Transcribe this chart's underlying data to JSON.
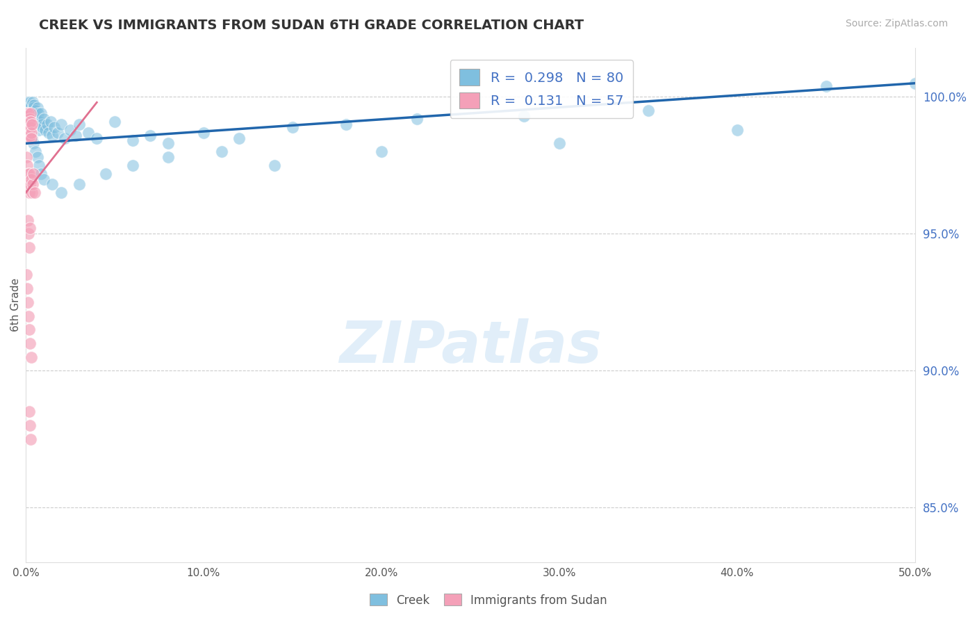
{
  "title": "CREEK VS IMMIGRANTS FROM SUDAN 6TH GRADE CORRELATION CHART",
  "source": "Source: ZipAtlas.com",
  "ylabel": "6th Grade",
  "xlim": [
    0.0,
    50.0
  ],
  "ylim": [
    83.0,
    101.8
  ],
  "yticks": [
    85.0,
    90.0,
    95.0,
    100.0
  ],
  "xticks": [
    0.0,
    10.0,
    20.0,
    30.0,
    40.0,
    50.0
  ],
  "xtick_labels": [
    "0.0%",
    "10.0%",
    "20.0%",
    "30.0%",
    "40.0%",
    "50.0%"
  ],
  "ytick_labels": [
    "85.0%",
    "90.0%",
    "95.0%",
    "100.0%"
  ],
  "legend_labels": [
    "Creek",
    "Immigrants from Sudan"
  ],
  "creek_color": "#7fbfdf",
  "sudan_color": "#f4a0b8",
  "creek_line_color": "#2166ac",
  "sudan_line_color": "#e07090",
  "R_creek": 0.298,
  "N_creek": 80,
  "R_sudan": 0.131,
  "N_sudan": 57,
  "creek_x": [
    0.05,
    0.08,
    0.1,
    0.12,
    0.14,
    0.16,
    0.18,
    0.2,
    0.22,
    0.24,
    0.26,
    0.28,
    0.3,
    0.32,
    0.34,
    0.36,
    0.38,
    0.4,
    0.42,
    0.44,
    0.46,
    0.48,
    0.5,
    0.55,
    0.6,
    0.65,
    0.7,
    0.75,
    0.8,
    0.85,
    0.9,
    0.95,
    1.0,
    1.1,
    1.2,
    1.3,
    1.4,
    1.5,
    1.6,
    1.8,
    2.0,
    2.2,
    2.5,
    2.8,
    3.0,
    3.5,
    4.0,
    5.0,
    6.0,
    7.0,
    8.0,
    10.0,
    12.0,
    15.0,
    18.0,
    22.0,
    28.0,
    35.0,
    45.0,
    50.0,
    0.15,
    0.25,
    0.35,
    0.45,
    0.55,
    0.65,
    0.75,
    0.85,
    1.0,
    1.5,
    2.0,
    3.0,
    4.5,
    6.0,
    8.0,
    11.0,
    14.0,
    20.0,
    30.0,
    40.0
  ],
  "creek_y": [
    99.5,
    99.2,
    99.8,
    99.4,
    99.6,
    99.3,
    99.7,
    99.1,
    99.5,
    99.8,
    99.2,
    99.6,
    99.4,
    99.7,
    99.3,
    99.5,
    99.8,
    99.2,
    99.6,
    99.4,
    99.1,
    99.7,
    99.3,
    99.5,
    99.2,
    99.6,
    99.4,
    98.8,
    99.1,
    99.4,
    99.0,
    98.9,
    99.2,
    98.8,
    99.0,
    98.7,
    99.1,
    98.6,
    98.9,
    98.7,
    99.0,
    98.5,
    98.8,
    98.6,
    99.0,
    98.7,
    98.5,
    99.1,
    98.4,
    98.6,
    98.3,
    98.7,
    98.5,
    98.9,
    99.0,
    99.2,
    99.3,
    99.5,
    100.4,
    100.5,
    99.0,
    98.8,
    98.5,
    98.3,
    98.0,
    97.8,
    97.5,
    97.2,
    97.0,
    96.8,
    96.5,
    96.8,
    97.2,
    97.5,
    97.8,
    98.0,
    97.5,
    98.0,
    98.3,
    98.8
  ],
  "sudan_x": [
    0.02,
    0.03,
    0.04,
    0.05,
    0.06,
    0.07,
    0.08,
    0.09,
    0.1,
    0.11,
    0.12,
    0.13,
    0.14,
    0.15,
    0.16,
    0.17,
    0.18,
    0.19,
    0.2,
    0.21,
    0.22,
    0.23,
    0.24,
    0.25,
    0.26,
    0.27,
    0.28,
    0.3,
    0.32,
    0.35,
    0.05,
    0.08,
    0.1,
    0.12,
    0.15,
    0.18,
    0.2,
    0.25,
    0.3,
    0.35,
    0.4,
    0.45,
    0.5,
    0.1,
    0.15,
    0.2,
    0.25,
    0.05,
    0.08,
    0.12,
    0.15,
    0.2,
    0.25,
    0.3,
    0.18,
    0.22,
    0.28
  ],
  "sudan_y": [
    99.0,
    99.3,
    98.8,
    99.2,
    98.6,
    99.4,
    98.9,
    99.1,
    98.7,
    99.3,
    98.5,
    99.0,
    98.8,
    99.2,
    98.6,
    99.4,
    98.9,
    99.1,
    98.7,
    98.5,
    99.0,
    98.8,
    99.2,
    98.6,
    99.4,
    98.9,
    99.1,
    98.7,
    98.5,
    99.0,
    97.8,
    97.5,
    97.2,
    96.8,
    97.0,
    96.5,
    97.2,
    96.8,
    97.0,
    96.5,
    96.8,
    97.2,
    96.5,
    95.5,
    95.0,
    94.5,
    95.2,
    93.5,
    93.0,
    92.5,
    92.0,
    91.5,
    91.0,
    90.5,
    88.5,
    88.0,
    87.5
  ],
  "creek_line_x": [
    0.0,
    50.0
  ],
  "creek_line_y": [
    98.3,
    100.5
  ],
  "sudan_line_x": [
    0.0,
    4.0
  ],
  "sudan_line_y": [
    96.5,
    99.8
  ]
}
